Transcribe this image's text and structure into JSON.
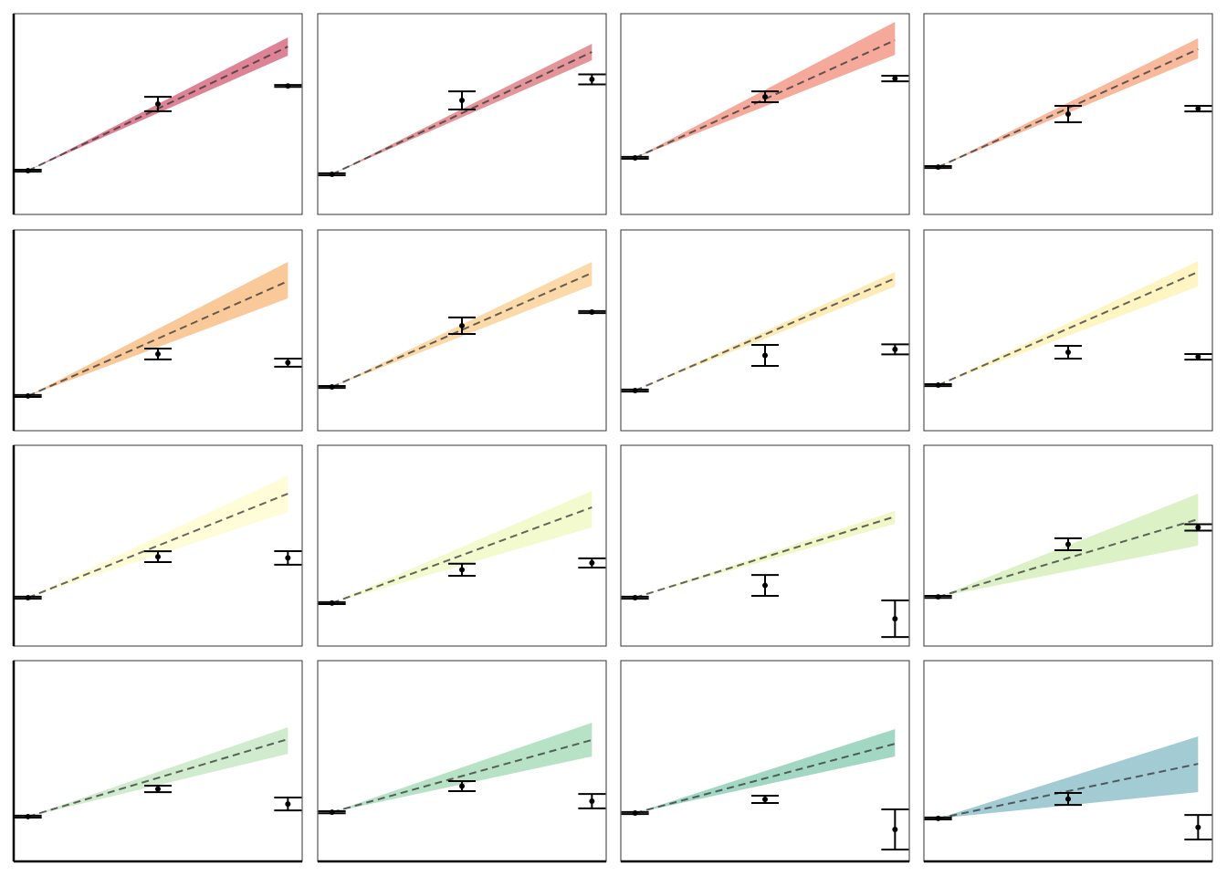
{
  "chart_data": [
    {
      "type": "errorbar",
      "x": [
        0,
        1,
        2
      ],
      "values": [
        21.8,
        55,
        64
      ],
      "errors": [
        0.5,
        3.6,
        0.5
      ],
      "fit_x": [
        0,
        2
      ],
      "fit": [
        21.8,
        83.6
      ],
      "fit_lower": [
        21.8,
        79.1
      ],
      "fit_upper": [
        21.8,
        88.2
      ],
      "color": "#d9758a",
      "xlim": [
        -0.11,
        2.11
      ],
      "ylim": [
        0,
        100
      ]
    },
    {
      "type": "errorbar",
      "x": [
        0,
        1,
        2
      ],
      "values": [
        20,
        56.8,
        67.3
      ],
      "errors": [
        0.5,
        4.5,
        2.5
      ],
      "fit_x": [
        0,
        2
      ],
      "fit": [
        20,
        80.9
      ],
      "fit_lower": [
        20,
        76.8
      ],
      "fit_upper": [
        20,
        85
      ],
      "color": "#e08a8e",
      "xlim": [
        -0.11,
        2.11
      ],
      "ylim": [
        0,
        100
      ]
    },
    {
      "type": "errorbar",
      "x": [
        0,
        1,
        2
      ],
      "values": [
        28.2,
        58.6,
        67.7
      ],
      "errors": [
        0.5,
        2.7,
        1.4
      ],
      "fit_x": [
        0,
        2
      ],
      "fit": [
        28.2,
        86.8
      ],
      "fit_lower": [
        28.2,
        79.5
      ],
      "fit_upper": [
        28.2,
        95.9
      ],
      "color": "#f4a090",
      "xlim": [
        -0.11,
        2.11
      ],
      "ylim": [
        0,
        100
      ]
    },
    {
      "type": "errorbar",
      "x": [
        0,
        1,
        2
      ],
      "values": [
        23.6,
        50,
        52.7
      ],
      "errors": [
        0.5,
        4.1,
        1.4
      ],
      "fit_x": [
        0,
        2
      ],
      "fit": [
        23.6,
        82.3
      ],
      "fit_lower": [
        23.6,
        77.7
      ],
      "fit_upper": [
        23.6,
        87.7
      ],
      "color": "#f7b191",
      "xlim": [
        -0.11,
        2.11
      ],
      "ylim": [
        0,
        100
      ]
    },
    {
      "type": "errorbar",
      "x": [
        0,
        1,
        2
      ],
      "values": [
        17.3,
        38.2,
        33.9
      ],
      "errors": [
        0.5,
        2.7,
        2
      ],
      "fit_x": [
        0,
        2
      ],
      "fit": [
        17.3,
        74.5
      ],
      "fit_lower": [
        17.3,
        65.9
      ],
      "fit_upper": [
        17.3,
        84.1
      ],
      "color": "#f9c38f",
      "xlim": [
        -0.11,
        2.11
      ],
      "ylim": [
        0,
        100
      ]
    },
    {
      "type": "errorbar",
      "x": [
        0,
        1,
        2
      ],
      "values": [
        21.8,
        52.3,
        59.1
      ],
      "errors": [
        0.5,
        4.1,
        0.5
      ],
      "fit_x": [
        0,
        2
      ],
      "fit": [
        21.8,
        78.6
      ],
      "fit_lower": [
        21.8,
        72.3
      ],
      "fit_upper": [
        21.8,
        84.1
      ],
      "color": "#fbd5a0",
      "xlim": [
        -0.11,
        2.11
      ],
      "ylim": [
        0,
        100
      ]
    },
    {
      "type": "errorbar",
      "x": [
        0,
        1,
        2
      ],
      "values": [
        20,
        37.5,
        40.5
      ],
      "errors": [
        0.5,
        5.2,
        2.5
      ],
      "fit_x": [
        0,
        2
      ],
      "fit": [
        20,
        75.9
      ],
      "fit_lower": [
        20,
        71.8
      ],
      "fit_upper": [
        20,
        79.1
      ],
      "color": "#fde9b0",
      "xlim": [
        -0.11,
        2.11
      ],
      "ylim": [
        0,
        100
      ]
    },
    {
      "type": "errorbar",
      "x": [
        0,
        1,
        2
      ],
      "values": [
        22.7,
        39.1,
        36.8
      ],
      "errors": [
        0.5,
        3.2,
        1.4
      ],
      "fit_x": [
        0,
        2
      ],
      "fit": [
        22.7,
        79.1
      ],
      "fit_lower": [
        22.7,
        71.8
      ],
      "fit_upper": [
        22.7,
        84.5
      ],
      "color": "#fef4bc",
      "xlim": [
        -0.11,
        2.11
      ],
      "ylim": [
        0,
        100
      ]
    },
    {
      "type": "errorbar",
      "x": [
        0,
        1,
        2
      ],
      "values": [
        24.1,
        44.5,
        43.9
      ],
      "errors": [
        0.5,
        2.7,
        3.4
      ],
      "fit_x": [
        0,
        2
      ],
      "fit": [
        24.1,
        75.9
      ],
      "fit_lower": [
        24.1,
        66.8
      ],
      "fit_upper": [
        24.1,
        85
      ],
      "color": "#fefdd4",
      "xlim": [
        -0.11,
        2.11
      ],
      "ylim": [
        0,
        100
      ]
    },
    {
      "type": "errorbar",
      "x": [
        0,
        1,
        2
      ],
      "values": [
        21.4,
        38,
        41.4
      ],
      "errors": [
        0.5,
        3,
        2.3
      ],
      "fit_x": [
        0,
        2
      ],
      "fit": [
        21.4,
        69.1
      ],
      "fit_lower": [
        21.4,
        59.1
      ],
      "fit_upper": [
        21.4,
        77.3
      ],
      "color": "#f2f9c8",
      "xlim": [
        -0.11,
        2.11
      ],
      "ylim": [
        0,
        100
      ]
    },
    {
      "type": "errorbar",
      "x": [
        0,
        1,
        2
      ],
      "values": [
        24.1,
        30.2,
        13.6
      ],
      "errors": [
        0.5,
        5.2,
        9.1
      ],
      "fit_x": [
        0,
        2
      ],
      "fit": [
        24.1,
        64.5
      ],
      "fit_lower": [
        24.1,
        60.9
      ],
      "fit_upper": [
        24.1,
        67.3
      ],
      "color": "#f0f6c0",
      "xlim": [
        -0.11,
        2.11
      ],
      "ylim": [
        0,
        100
      ]
    },
    {
      "type": "errorbar",
      "x": [
        0,
        1,
        2
      ],
      "values": [
        24.5,
        50.7,
        59.1
      ],
      "errors": [
        0.5,
        3,
        1.6
      ],
      "fit_x": [
        0,
        2
      ],
      "fit": [
        24.5,
        63.2
      ],
      "fit_lower": [
        24.5,
        50
      ],
      "fit_upper": [
        24.5,
        75.9
      ],
      "color": "#d8efc0",
      "xlim": [
        -0.11,
        2.11
      ],
      "ylim": [
        0,
        100
      ]
    },
    {
      "type": "errorbar",
      "x": [
        0,
        1,
        2
      ],
      "values": [
        22.3,
        36.1,
        28.6
      ],
      "errors": [
        0.5,
        1.6,
        3.2
      ],
      "fit_x": [
        0,
        2
      ],
      "fit": [
        22.3,
        60.9
      ],
      "fit_lower": [
        22.3,
        53.6
      ],
      "fit_upper": [
        22.3,
        66.8
      ],
      "color": "#cbe9c8",
      "xlim": [
        -0.11,
        2.11
      ],
      "ylim": [
        0,
        100
      ]
    },
    {
      "type": "errorbar",
      "x": [
        0,
        1,
        2
      ],
      "values": [
        24.5,
        37.5,
        30
      ],
      "errors": [
        0.5,
        2.5,
        3.6
      ],
      "fit_x": [
        0,
        2
      ],
      "fit": [
        24.5,
        60.5
      ],
      "fit_lower": [
        24.5,
        52.3
      ],
      "fit_upper": [
        24.5,
        69.1
      ],
      "color": "#b0dfc0",
      "xlim": [
        -0.11,
        2.11
      ],
      "ylim": [
        0,
        100
      ]
    },
    {
      "type": "errorbar",
      "x": [
        0,
        1,
        2
      ],
      "values": [
        24.1,
        30.9,
        15.9
      ],
      "errors": [
        0.5,
        1.8,
        10
      ],
      "fit_x": [
        0,
        2
      ],
      "fit": [
        24.1,
        58.6
      ],
      "fit_lower": [
        24.1,
        52.3
      ],
      "fit_upper": [
        24.1,
        65.9
      ],
      "color": "#97d3bc",
      "xlim": [
        -0.11,
        2.11
      ],
      "ylim": [
        0,
        100
      ]
    },
    {
      "type": "errorbar",
      "x": [
        0,
        1,
        2
      ],
      "values": [
        21.4,
        31.1,
        17
      ],
      "errors": [
        0.5,
        3,
        6.1
      ],
      "fit_x": [
        0,
        2
      ],
      "fit": [
        21.4,
        48.6
      ],
      "fit_lower": [
        21.4,
        34.5
      ],
      "fit_upper": [
        21.4,
        62.3
      ],
      "color": "#99c5cf",
      "xlim": [
        -0.11,
        2.11
      ],
      "ylim": [
        0,
        100
      ]
    }
  ]
}
